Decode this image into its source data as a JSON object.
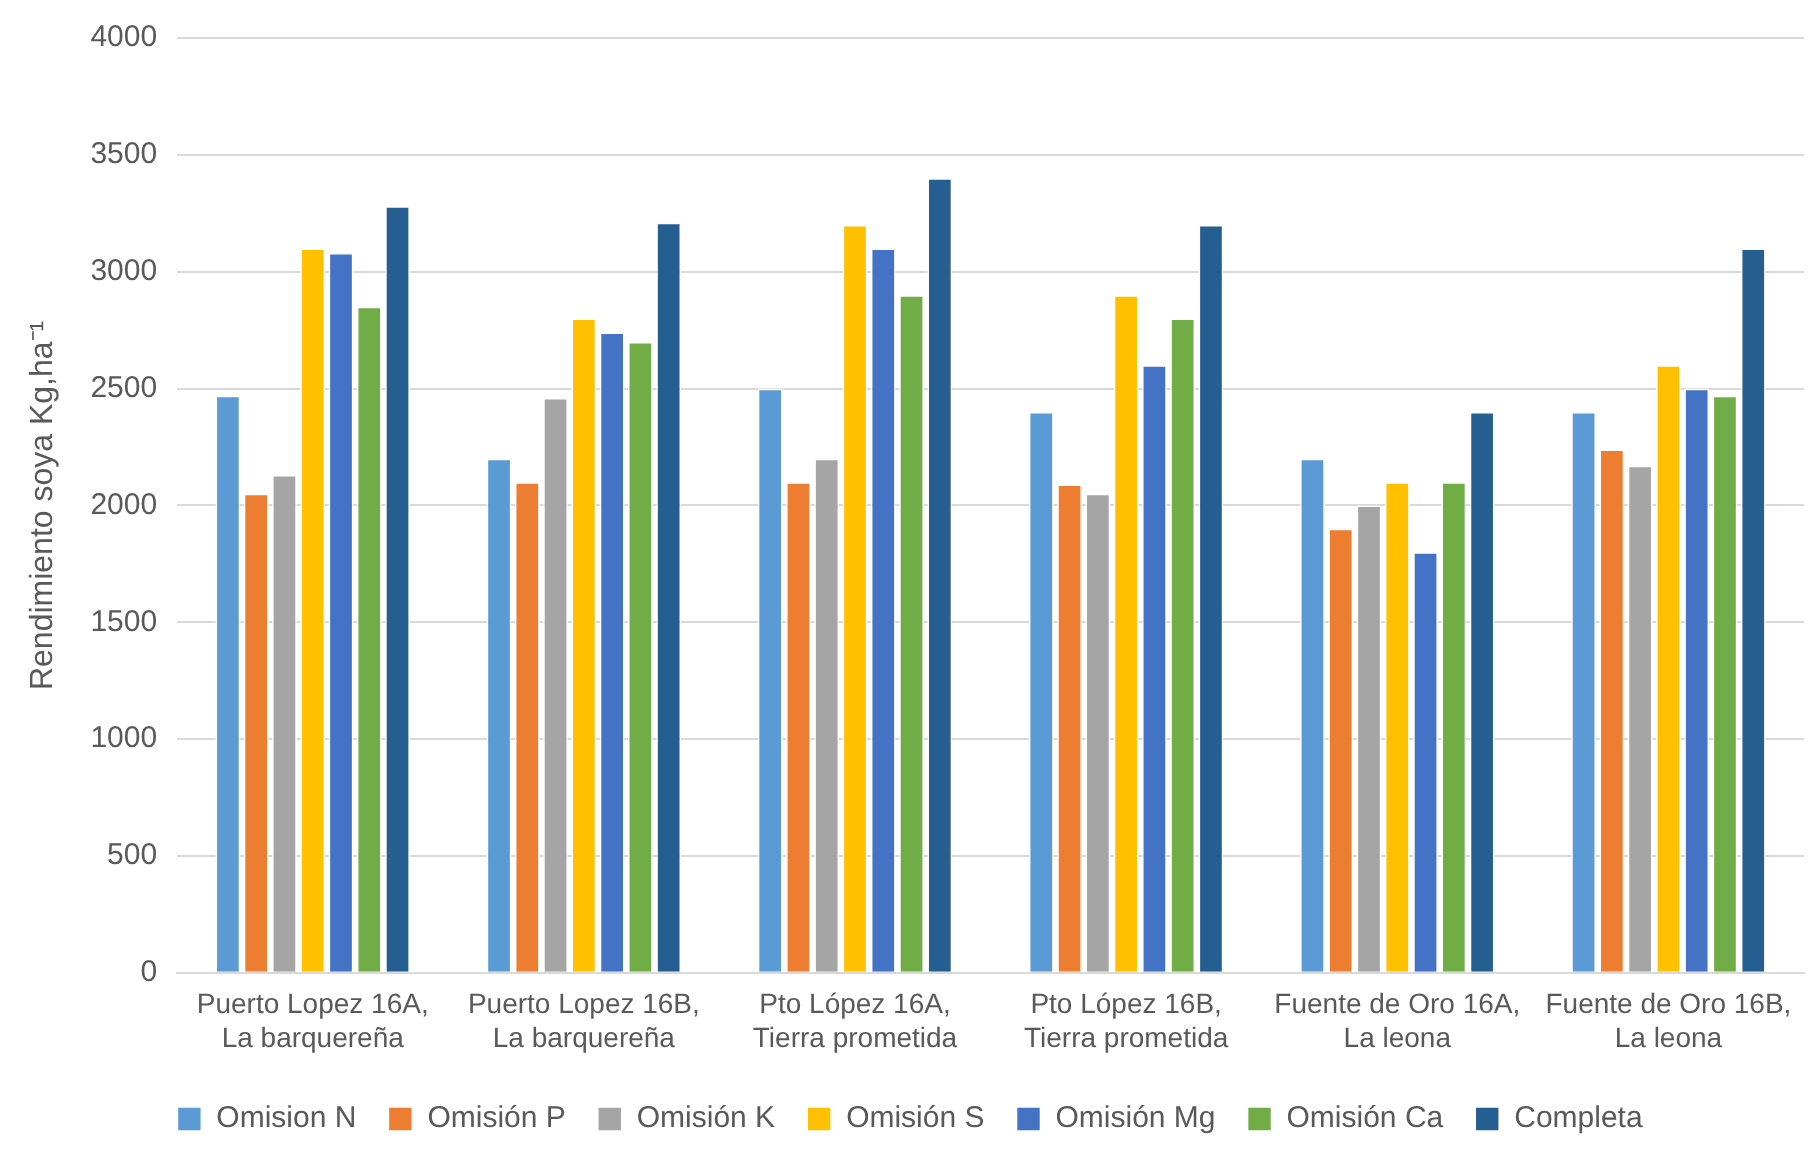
{
  "chart_data": {
    "type": "bar",
    "ylabel": "Rendimiento soya Kg,ha⁻¹",
    "categories": [
      "Puerto Lopez 16A, La barquereña",
      "Puerto Lopez 16B, La barquereña",
      "Pto López 16A, Tierra prometida",
      "Pto López 16B, Tierra prometida",
      "Fuente de Oro 16A, La leona",
      "Fuente de Oro 16B, La leona"
    ],
    "series": [
      {
        "name": "Omision N",
        "color": "#5b9bd5",
        "values": [
          2470,
          2200,
          2500,
          2400,
          2200,
          2400
        ]
      },
      {
        "name": "Omisión P",
        "color": "#ed7d31",
        "values": [
          2050,
          2100,
          2100,
          2090,
          1900,
          2240
        ]
      },
      {
        "name": "Omisión K",
        "color": "#a5a5a5",
        "values": [
          2130,
          2460,
          2200,
          2050,
          2000,
          2170
        ]
      },
      {
        "name": "Omisión S",
        "color": "#ffc000",
        "values": [
          3100,
          2800,
          3200,
          2900,
          2100,
          2600
        ]
      },
      {
        "name": "Omisión Mg",
        "color": "#4472c4",
        "values": [
          3080,
          2740,
          3100,
          2600,
          1800,
          2500
        ]
      },
      {
        "name": "Omisión Ca",
        "color": "#70ad47",
        "values": [
          2850,
          2700,
          2900,
          2800,
          2100,
          2470
        ]
      },
      {
        "name": "Completa",
        "color": "#255e91",
        "values": [
          3280,
          3210,
          3400,
          3200,
          2400,
          3100
        ]
      }
    ],
    "ylim": [
      0,
      4000
    ],
    "yticks": [
      0,
      500,
      1000,
      1500,
      2000,
      2500,
      3000,
      3500,
      4000
    ],
    "grid": "y",
    "legend": "bottom"
  }
}
